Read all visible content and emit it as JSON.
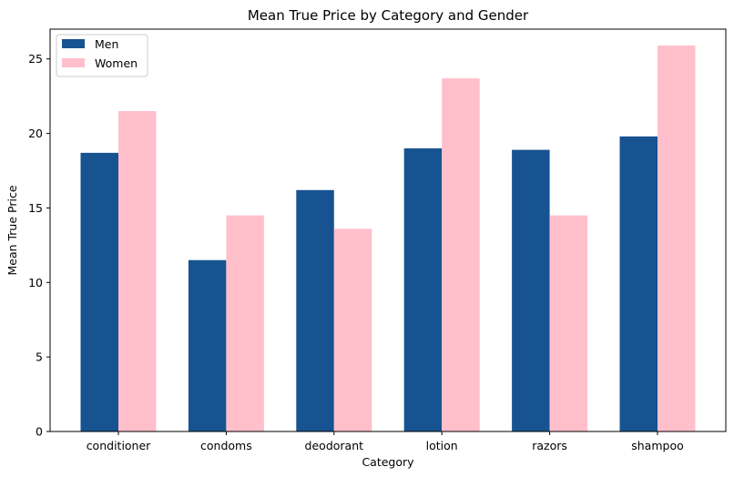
{
  "chart_data": {
    "type": "bar",
    "title": "Mean True Price by Category and Gender",
    "xlabel": "Category",
    "ylabel": "Mean True Price",
    "categories": [
      "conditioner",
      "condoms",
      "deodorant",
      "lotion",
      "razors",
      "shampoo"
    ],
    "series": [
      {
        "name": "Men",
        "color": "#175391",
        "values": [
          18.7,
          11.5,
          16.2,
          19.0,
          18.9,
          19.8
        ]
      },
      {
        "name": "Women",
        "color": "#ffc0cb",
        "values": [
          21.5,
          14.5,
          13.6,
          23.7,
          14.5,
          25.9
        ]
      }
    ],
    "ylim": [
      0,
      27
    ],
    "yticks": [
      0,
      5,
      10,
      15,
      20,
      25
    ],
    "grid": false,
    "legend_position": "top-left"
  }
}
